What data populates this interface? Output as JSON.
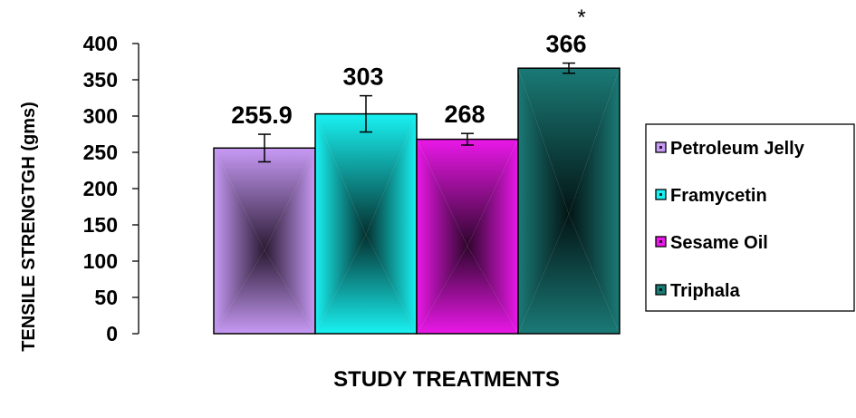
{
  "chart_data": {
    "type": "bar",
    "title": "",
    "xlabel": "STUDY TREATMENTS",
    "ylabel": "TENSILE STRENGTGH (gms)",
    "ylim": [
      0,
      400
    ],
    "yticks": [
      0,
      50,
      100,
      150,
      200,
      250,
      300,
      350,
      400
    ],
    "grid": false,
    "legend_position": "right",
    "series": [
      {
        "name": "Petroleum Jelly",
        "value": 255.9,
        "value_label": "255.9",
        "error": 19,
        "annotation": "",
        "color": "#c79af5",
        "dark": "#2a1a33"
      },
      {
        "name": "Framycetin",
        "value": 303,
        "value_label": "303",
        "error": 25,
        "annotation": "",
        "color": "#19f2f2",
        "dark": "#04302f"
      },
      {
        "name": "Sesame Oil",
        "value": 268,
        "value_label": "268",
        "error": 8,
        "annotation": "",
        "color": "#ea18e8",
        "dark": "#2e052c"
      },
      {
        "name": "Triphala",
        "value": 366,
        "value_label": "366",
        "error": 7,
        "annotation": "*",
        "color": "#1a7a76",
        "dark": "#031414"
      }
    ]
  }
}
